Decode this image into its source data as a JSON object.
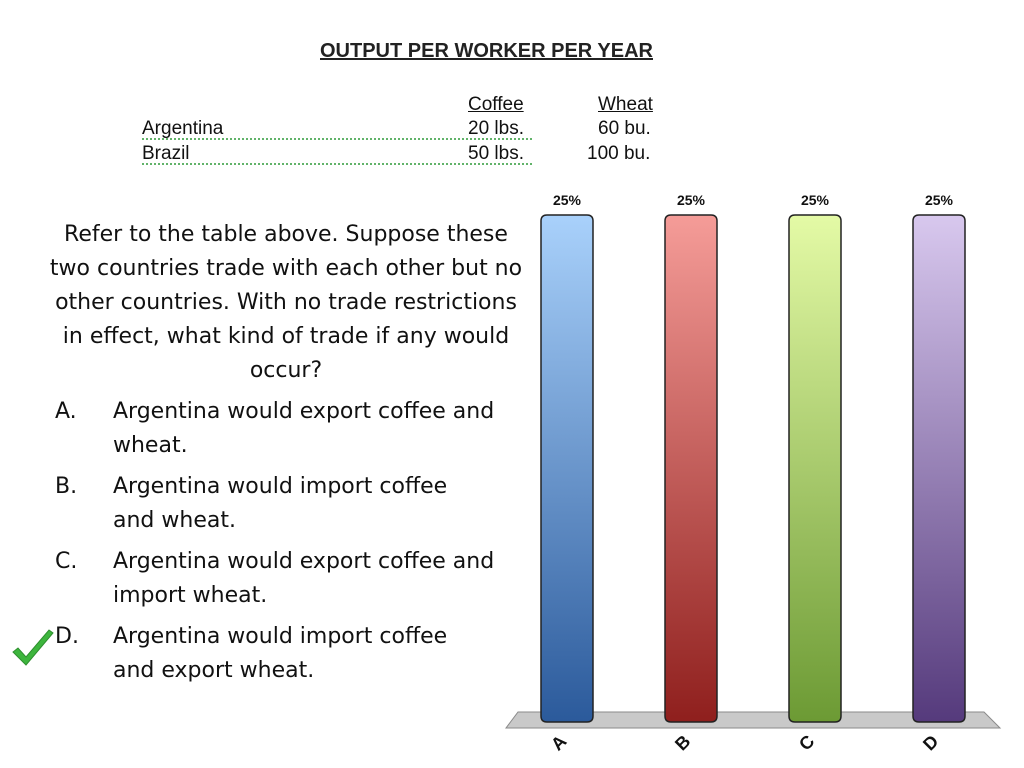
{
  "table": {
    "title": "OUTPUT PER WORKER PER YEAR",
    "headers": [
      "",
      "Coffee",
      "Wheat"
    ],
    "rows": [
      {
        "country": "Argentina",
        "coffee": "20 lbs.",
        "wheat": "60 bu."
      },
      {
        "country": "Brazil",
        "coffee": "50 lbs.",
        "wheat": "100 bu."
      }
    ]
  },
  "question": {
    "text": "Refer to the table above. Suppose these two countries trade with each other but no other countries. With no trade restrictions in effect, what kind of trade if any would occur?",
    "options": [
      {
        "letter": "A.",
        "text": "Argentina would export coffee and wheat."
      },
      {
        "letter": "B.",
        "text": "Argentina would import coffee and wheat."
      },
      {
        "letter": "C.",
        "text": "Argentina would export coffee and import wheat."
      },
      {
        "letter": "D.",
        "text": "Argentina would import coffee and export wheat."
      }
    ],
    "correct_option": "D."
  },
  "chart_data": {
    "type": "bar",
    "categories": [
      "A",
      "B",
      "C",
      "D"
    ],
    "values": [
      25,
      25,
      25,
      25
    ],
    "data_labels": [
      "25%",
      "25%",
      "25%",
      "25%"
    ],
    "ylim": [
      0,
      25
    ],
    "grid": false,
    "legend": "none",
    "colors": [
      [
        "#a9d1fb",
        "#2b5a9b"
      ],
      [
        "#f59c98",
        "#8f1f1d"
      ],
      [
        "#e4faa6",
        "#6c9a34"
      ],
      [
        "#d8c8ee",
        "#553a7c"
      ]
    ]
  },
  "colors": {
    "check": "#3db53d"
  }
}
